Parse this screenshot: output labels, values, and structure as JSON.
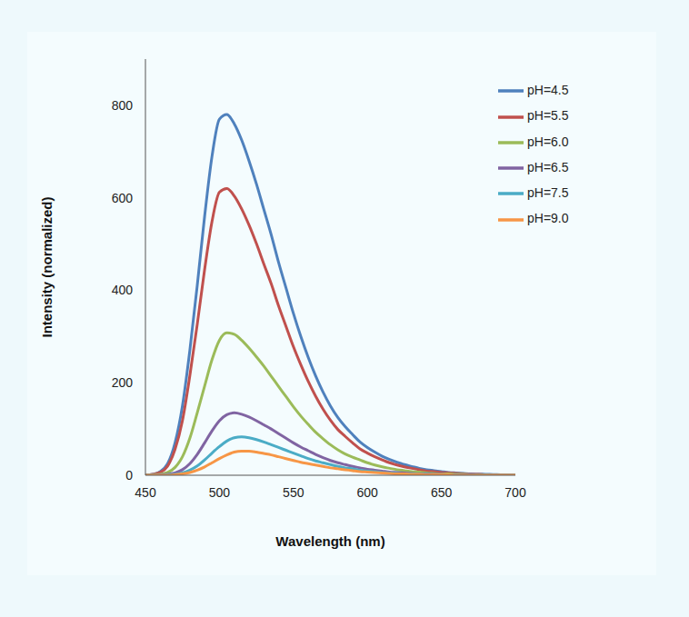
{
  "chart_data": {
    "type": "line",
    "x_label": "Wavelength (nm)",
    "y_label": "Intensity (normalized)",
    "x": [
      450,
      455,
      460,
      465,
      470,
      475,
      480,
      485,
      490,
      495,
      500,
      505,
      510,
      515,
      520,
      525,
      530,
      535,
      540,
      545,
      550,
      555,
      560,
      565,
      570,
      575,
      580,
      585,
      590,
      595,
      600,
      605,
      610,
      615,
      620,
      625,
      630,
      635,
      640,
      645,
      650,
      655,
      660,
      665,
      670,
      675,
      680,
      685,
      690,
      695,
      700
    ],
    "series": [
      {
        "name": "pH=4.5",
        "color": "#4F81BD",
        "values": [
          0,
          2,
          8,
          25,
          70,
          150,
          270,
          410,
          560,
          690,
          770,
          780,
          760,
          725,
          680,
          630,
          575,
          520,
          460,
          405,
          350,
          300,
          255,
          215,
          180,
          150,
          125,
          105,
          88,
          72,
          60,
          50,
          41,
          34,
          28,
          23,
          19,
          15,
          12,
          10,
          8,
          6,
          5,
          4,
          3,
          2.5,
          2,
          1.5,
          1,
          0.5,
          0
        ]
      },
      {
        "name": "pH=5.5",
        "color": "#C0504D",
        "values": [
          0,
          2,
          6,
          20,
          56,
          118,
          215,
          326,
          445,
          549,
          612,
          620,
          604,
          576,
          541,
          501,
          457,
          414,
          366,
          322,
          278,
          239,
          203,
          171,
          143,
          119,
          99,
          84,
          70,
          57,
          48,
          40,
          33,
          27,
          22,
          18,
          15,
          12,
          9,
          8,
          6,
          5,
          4,
          3,
          2,
          2,
          1,
          1,
          1,
          0,
          0
        ]
      },
      {
        "name": "pH=6.0",
        "color": "#9BBB59",
        "values": [
          0,
          1,
          2,
          6,
          17,
          40,
          80,
          135,
          193,
          250,
          292,
          308,
          305,
          292,
          275,
          256,
          236,
          214,
          192,
          170,
          148,
          128,
          110,
          93,
          79,
          66,
          55,
          46,
          39,
          33,
          27,
          22,
          18,
          15,
          12,
          10,
          8,
          7,
          5,
          4,
          3,
          3,
          2,
          2,
          1,
          1,
          1,
          0,
          0,
          0,
          0
        ]
      },
      {
        "name": "pH=6.5",
        "color": "#8064A2",
        "values": [
          0,
          0,
          1,
          2,
          5,
          12,
          25,
          45,
          70,
          96,
          118,
          131,
          135,
          132,
          126,
          118,
          109,
          100,
          90,
          80,
          70,
          61,
          53,
          45,
          38,
          32,
          27,
          23,
          19,
          16,
          13,
          11,
          9,
          7,
          6,
          5,
          4,
          3,
          3,
          2,
          2,
          1,
          1,
          1,
          1,
          0,
          0,
          0,
          0,
          0,
          0
        ]
      },
      {
        "name": "pH=7.5",
        "color": "#4BACC6",
        "values": [
          0,
          0,
          0,
          1,
          2,
          5,
          11,
          20,
          33,
          48,
          62,
          74,
          81,
          83,
          81,
          77,
          72,
          66,
          60,
          54,
          48,
          42,
          36,
          31,
          27,
          23,
          19,
          16,
          14,
          11,
          9,
          8,
          6,
          5,
          4,
          3,
          3,
          2,
          2,
          1,
          1,
          1,
          1,
          0,
          0,
          0,
          0,
          0,
          0,
          0,
          0
        ]
      },
      {
        "name": "pH=9.0",
        "color": "#F79646",
        "values": [
          0,
          0,
          0,
          0,
          1,
          3,
          6,
          11,
          18,
          27,
          36,
          44,
          50,
          52,
          52,
          50,
          47,
          44,
          40,
          36,
          32,
          28,
          25,
          22,
          19,
          16,
          14,
          12,
          10,
          8,
          7,
          6,
          5,
          4,
          3,
          3,
          2,
          2,
          1,
          1,
          1,
          1,
          0,
          0,
          0,
          0,
          0,
          0,
          0,
          0,
          0
        ]
      }
    ],
    "xlim": [
      450,
      700
    ],
    "xticks": [
      450,
      500,
      550,
      600,
      650,
      700
    ],
    "ylim": [
      0,
      900
    ],
    "yticks": [
      0,
      200,
      400,
      600,
      800
    ],
    "grid": false,
    "legend": "upper right"
  }
}
